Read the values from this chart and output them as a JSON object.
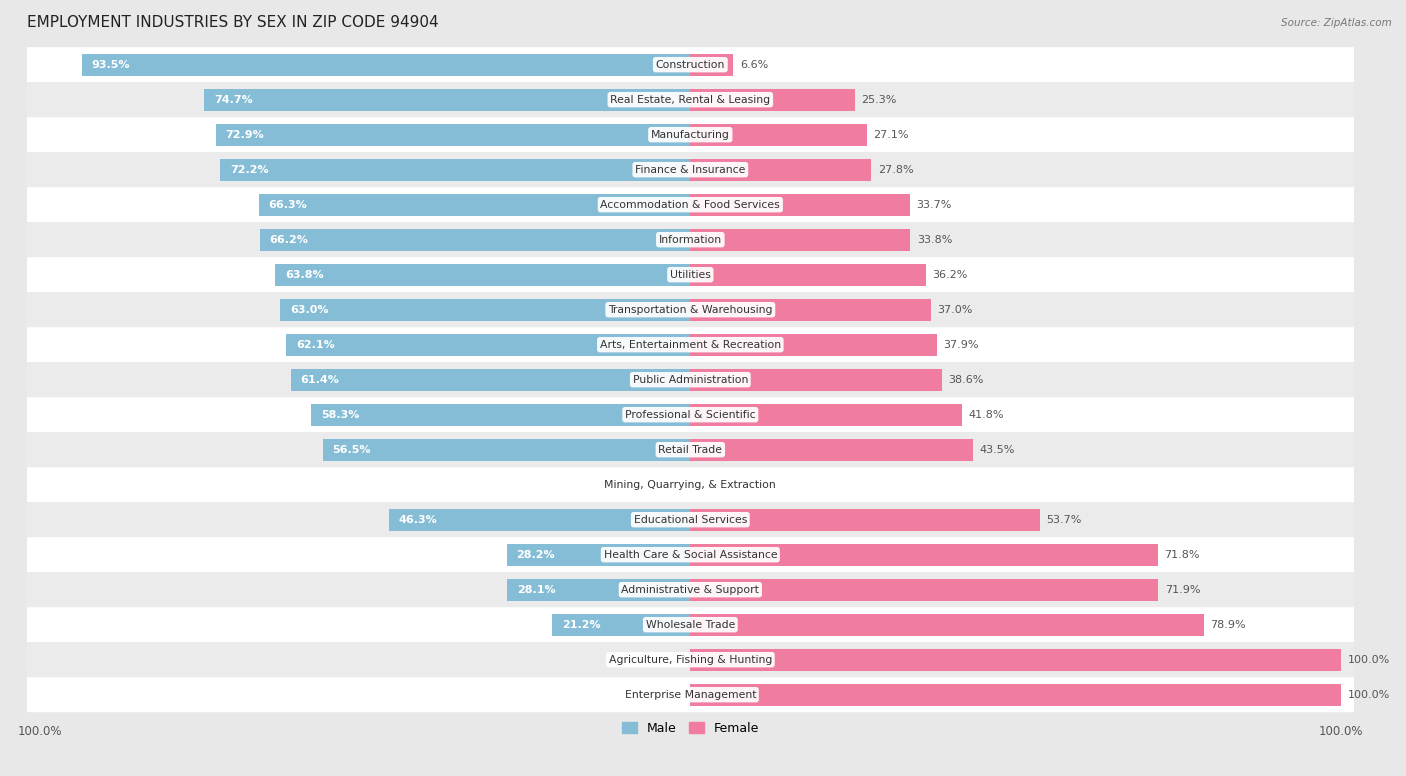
{
  "title": "EMPLOYMENT INDUSTRIES BY SEX IN ZIP CODE 94904",
  "source": "Source: ZipAtlas.com",
  "categories": [
    "Construction",
    "Real Estate, Rental & Leasing",
    "Manufacturing",
    "Finance & Insurance",
    "Accommodation & Food Services",
    "Information",
    "Utilities",
    "Transportation & Warehousing",
    "Arts, Entertainment & Recreation",
    "Public Administration",
    "Professional & Scientific",
    "Retail Trade",
    "Mining, Quarrying, & Extraction",
    "Educational Services",
    "Health Care & Social Assistance",
    "Administrative & Support",
    "Wholesale Trade",
    "Agriculture, Fishing & Hunting",
    "Enterprise Management"
  ],
  "male": [
    93.5,
    74.7,
    72.9,
    72.2,
    66.3,
    66.2,
    63.8,
    63.0,
    62.1,
    61.4,
    58.3,
    56.5,
    0.0,
    46.3,
    28.2,
    28.1,
    21.2,
    0.0,
    0.0
  ],
  "female": [
    6.6,
    25.3,
    27.1,
    27.8,
    33.7,
    33.8,
    36.2,
    37.0,
    37.9,
    38.6,
    41.8,
    43.5,
    0.0,
    53.7,
    71.8,
    71.9,
    78.9,
    100.0,
    100.0
  ],
  "male_color": "#85bdd6",
  "female_color": "#f07ca0",
  "background_color": "#e8e8e8",
  "row_color_odd": "#ffffff",
  "row_color_even": "#ebebeb",
  "title_fontsize": 11,
  "label_fontsize": 8,
  "tick_fontsize": 8.5
}
